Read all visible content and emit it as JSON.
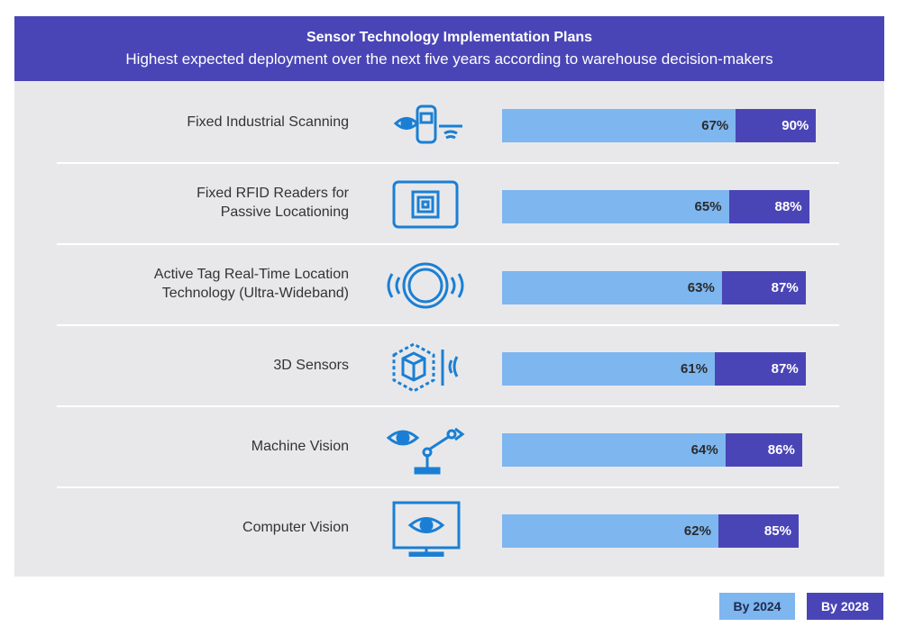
{
  "chart_data": {
    "type": "bar",
    "title": "Sensor Technology Implementation Plans",
    "subtitle": "Highest expected deployment over the next five years according to warehouse decision-makers",
    "categories": [
      "Fixed Industrial Scanning",
      "Fixed RFID Readers for\nPassive Locationing",
      "Active Tag Real-Time Location\nTechnology (Ultra-Wideband)",
      "3D Sensors",
      "Machine Vision",
      "Computer Vision"
    ],
    "series": [
      {
        "name": "By 2024",
        "values": [
          67,
          65,
          63,
          61,
          64,
          62
        ],
        "color": "#7eb6ef"
      },
      {
        "name": "By 2028",
        "values": [
          90,
          88,
          87,
          87,
          86,
          85
        ],
        "color": "#4a45b6"
      }
    ],
    "value_suffix": "%",
    "icons": [
      "scanner-icon",
      "rfid-reader-icon",
      "uwb-tag-icon",
      "3d-sensor-icon",
      "machine-vision-icon",
      "computer-vision-icon"
    ],
    "legend_position": "bottom-right"
  }
}
